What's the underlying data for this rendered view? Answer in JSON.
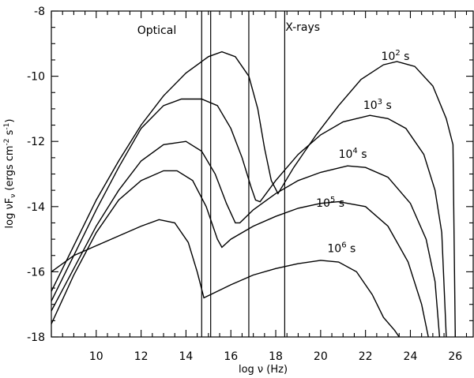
{
  "chart_data": {
    "type": "line",
    "xlabel": "log ν (Hz)",
    "ylabel": "log νF",
    "ylabel_sub": "ν",
    "ylabel_units_prefix": " (ergs cm",
    "ylabel_units_exp1": "-2",
    "ylabel_units_mid": " s",
    "ylabel_units_exp2": "-1",
    "ylabel_units_suffix": ")",
    "xlim": [
      8,
      26.8
    ],
    "ylim": [
      -18,
      -8
    ],
    "x_ticks": [
      10,
      12,
      14,
      16,
      18,
      20,
      22,
      24,
      26
    ],
    "x_tick_labels": [
      "10",
      "12",
      "14",
      "16",
      "18",
      "20",
      "22",
      "24",
      "26"
    ],
    "y_ticks": [
      -8,
      -10,
      -12,
      -14,
      -16,
      -18
    ],
    "y_tick_labels": [
      "-8",
      "-10",
      "-12",
      "-14",
      "-16",
      "-18"
    ],
    "band_lines_x": [
      14.7,
      15.1,
      16.8,
      18.4
    ],
    "annotations": [
      {
        "text": "Optical",
        "x": 12.7,
        "y": -8.7
      },
      {
        "text": "X-rays",
        "x": 19.2,
        "y": -8.6
      }
    ],
    "series": [
      {
        "label_base": "10",
        "label_exp": "2",
        "label_unit": " s",
        "label_x": 22.7,
        "label_y": -9.5,
        "points": [
          [
            8,
            -16.6
          ],
          [
            9,
            -15.2
          ],
          [
            10,
            -13.8
          ],
          [
            11,
            -12.6
          ],
          [
            12,
            -11.5
          ],
          [
            13,
            -10.6
          ],
          [
            14,
            -9.9
          ],
          [
            15,
            -9.4
          ],
          [
            15.6,
            -9.25
          ],
          [
            16.2,
            -9.4
          ],
          [
            16.8,
            -10.0
          ],
          [
            17.2,
            -11.0
          ],
          [
            17.5,
            -12.2
          ],
          [
            17.8,
            -13.2
          ],
          [
            18.1,
            -13.6
          ],
          [
            18.8,
            -12.8
          ],
          [
            19.8,
            -11.8
          ],
          [
            20.8,
            -10.9
          ],
          [
            21.8,
            -10.1
          ],
          [
            22.8,
            -9.65
          ],
          [
            23.4,
            -9.55
          ],
          [
            24.2,
            -9.7
          ],
          [
            25.0,
            -10.3
          ],
          [
            25.6,
            -11.3
          ],
          [
            25.9,
            -12.1
          ],
          [
            26.0,
            -18
          ]
        ]
      },
      {
        "label_base": "10",
        "label_exp": "3",
        "label_unit": " s",
        "label_x": 21.9,
        "label_y": -11.0,
        "points": [
          [
            8,
            -16.9
          ],
          [
            9,
            -15.5
          ],
          [
            10,
            -14.1
          ],
          [
            11,
            -12.8
          ],
          [
            12,
            -11.6
          ],
          [
            13,
            -10.9
          ],
          [
            13.8,
            -10.7
          ],
          [
            14.7,
            -10.7
          ],
          [
            15.4,
            -10.9
          ],
          [
            16,
            -11.6
          ],
          [
            16.5,
            -12.5
          ],
          [
            16.9,
            -13.4
          ],
          [
            17.1,
            -13.8
          ],
          [
            17.3,
            -13.85
          ],
          [
            18,
            -13.2
          ],
          [
            19,
            -12.4
          ],
          [
            20,
            -11.8
          ],
          [
            21,
            -11.4
          ],
          [
            22.2,
            -11.2
          ],
          [
            23,
            -11.3
          ],
          [
            23.8,
            -11.6
          ],
          [
            24.6,
            -12.4
          ],
          [
            25.1,
            -13.5
          ],
          [
            25.4,
            -14.8
          ],
          [
            25.6,
            -18
          ]
        ]
      },
      {
        "label_base": "10",
        "label_exp": "4",
        "label_unit": " s",
        "label_x": 20.8,
        "label_y": -12.5,
        "points": [
          [
            8,
            -17.2
          ],
          [
            9,
            -15.9
          ],
          [
            10,
            -14.6
          ],
          [
            11,
            -13.5
          ],
          [
            12,
            -12.6
          ],
          [
            13,
            -12.1
          ],
          [
            14,
            -12.0
          ],
          [
            14.7,
            -12.3
          ],
          [
            15.3,
            -13.0
          ],
          [
            15.8,
            -13.9
          ],
          [
            16.2,
            -14.5
          ],
          [
            16.4,
            -14.5
          ],
          [
            17,
            -14.1
          ],
          [
            18,
            -13.6
          ],
          [
            19,
            -13.2
          ],
          [
            20,
            -12.95
          ],
          [
            21.2,
            -12.75
          ],
          [
            22,
            -12.8
          ],
          [
            23,
            -13.1
          ],
          [
            24,
            -13.9
          ],
          [
            24.7,
            -15.0
          ],
          [
            25.1,
            -16.3
          ],
          [
            25.3,
            -18
          ]
        ]
      },
      {
        "label_base": "10",
        "label_exp": "5",
        "label_unit": " s",
        "label_x": 19.8,
        "label_y": -14.0,
        "points": [
          [
            8,
            -17.6
          ],
          [
            9,
            -16.1
          ],
          [
            10,
            -14.8
          ],
          [
            11,
            -13.8
          ],
          [
            12,
            -13.2
          ],
          [
            13,
            -12.9
          ],
          [
            13.6,
            -12.9
          ],
          [
            14.3,
            -13.2
          ],
          [
            14.9,
            -14.0
          ],
          [
            15.4,
            -15.0
          ],
          [
            15.6,
            -15.25
          ],
          [
            16,
            -15.0
          ],
          [
            17,
            -14.6
          ],
          [
            18,
            -14.3
          ],
          [
            19,
            -14.05
          ],
          [
            20,
            -13.9
          ],
          [
            20.8,
            -13.85
          ],
          [
            22,
            -14.0
          ],
          [
            23,
            -14.6
          ],
          [
            23.9,
            -15.7
          ],
          [
            24.5,
            -17.0
          ],
          [
            24.8,
            -18
          ]
        ]
      },
      {
        "label_base": "10",
        "label_exp": "6",
        "label_unit": " s",
        "label_x": 20.3,
        "label_y": -15.4,
        "points": [
          [
            8,
            -16.0
          ],
          [
            9,
            -15.5
          ],
          [
            10,
            -15.2
          ],
          [
            11,
            -14.9
          ],
          [
            12,
            -14.6
          ],
          [
            12.8,
            -14.4
          ],
          [
            13.5,
            -14.5
          ],
          [
            14.1,
            -15.1
          ],
          [
            14.5,
            -16.0
          ],
          [
            14.8,
            -16.8
          ],
          [
            15.1,
            -16.7
          ],
          [
            16,
            -16.4
          ],
          [
            17,
            -16.1
          ],
          [
            18,
            -15.9
          ],
          [
            19,
            -15.75
          ],
          [
            20,
            -15.65
          ],
          [
            20.8,
            -15.7
          ],
          [
            21.6,
            -16.0
          ],
          [
            22.3,
            -16.7
          ],
          [
            22.8,
            -17.4
          ],
          [
            23.3,
            -17.8
          ],
          [
            23.5,
            -18
          ]
        ]
      }
    ]
  }
}
